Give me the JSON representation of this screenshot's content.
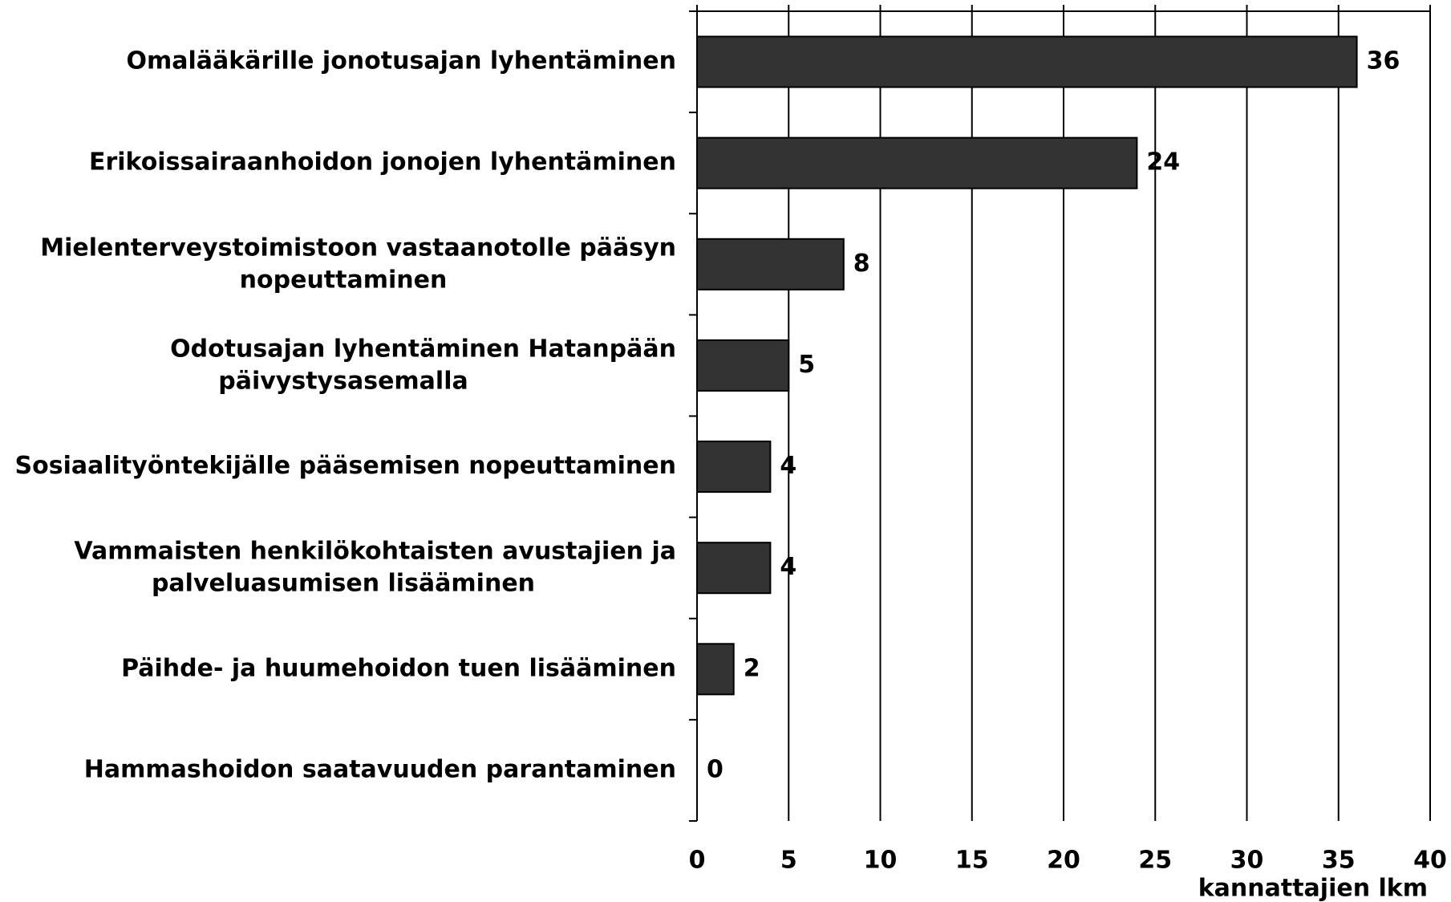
{
  "chart_data": {
    "type": "barh",
    "categories": [
      "Omalääkärille jonotusajan lyhentäminen",
      "Erikoissairaanhoidon jonojen lyhentäminen",
      "Mielenterveystoimistoon vastaanotolle pääsyn nopeuttaminen",
      "Odotusajan lyhentäminen Hatanpään päivystysasemalla",
      "Sosiaalityöntekijälle pääsemisen nopeuttaminen",
      "Vammaisten henkilökohtaisten avustajien ja palveluasumisen lisääminen",
      "Päihde- ja huumehoidon tuen lisääminen",
      "Hammashoidon saatavuuden parantaminen"
    ],
    "values": [
      36,
      24,
      8,
      5,
      4,
      4,
      2,
      0
    ],
    "color": "#333333",
    "xlabel": "kannattajien lkm",
    "xlim": [
      0,
      40
    ],
    "xticks": [
      0,
      5,
      10,
      15,
      20,
      25,
      30,
      35,
      40
    ],
    "grid": true
  }
}
